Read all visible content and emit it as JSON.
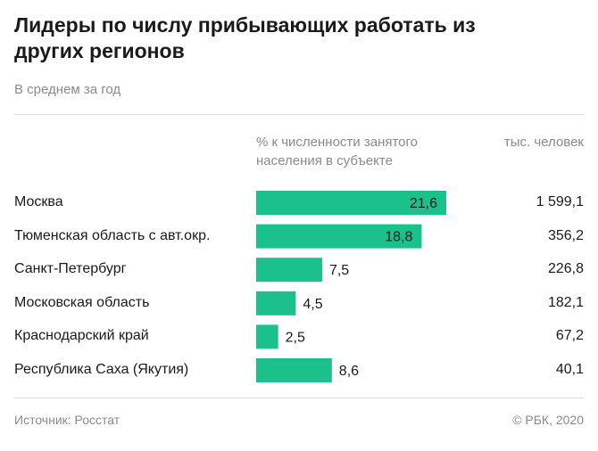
{
  "title": "Лидеры по числу прибывающих работать из других регионов",
  "subtitle": "В среднем за год",
  "columns": {
    "pct_header": "% к численности занятого населения в субъекте",
    "abs_header": "тыс. человек"
  },
  "footer": {
    "source": "Источник: Росстат",
    "copyright": "© РБК, 2020"
  },
  "colors": {
    "bar": "#1cc08a",
    "text": "#1a1a1a",
    "muted": "#8a8a8a"
  },
  "chart_data": {
    "type": "bar",
    "orientation": "horizontal",
    "categories": [
      "Москва",
      "Тюменская область с авт.окр.",
      "Санкт-Петербург",
      "Московская область",
      "Краснодарский край",
      "Республика Саха (Якутия)"
    ],
    "values": [
      21.6,
      18.8,
      7.5,
      4.5,
      2.5,
      8.6
    ],
    "value_labels": [
      "21,6",
      "18,8",
      "7,5",
      "4,5",
      "2,5",
      "8,6"
    ],
    "thousand_people": [
      "1 599,1",
      "356,2",
      "226,8",
      "182,1",
      "67,2",
      "40,1"
    ],
    "xlim": [
      0,
      21.6
    ]
  }
}
